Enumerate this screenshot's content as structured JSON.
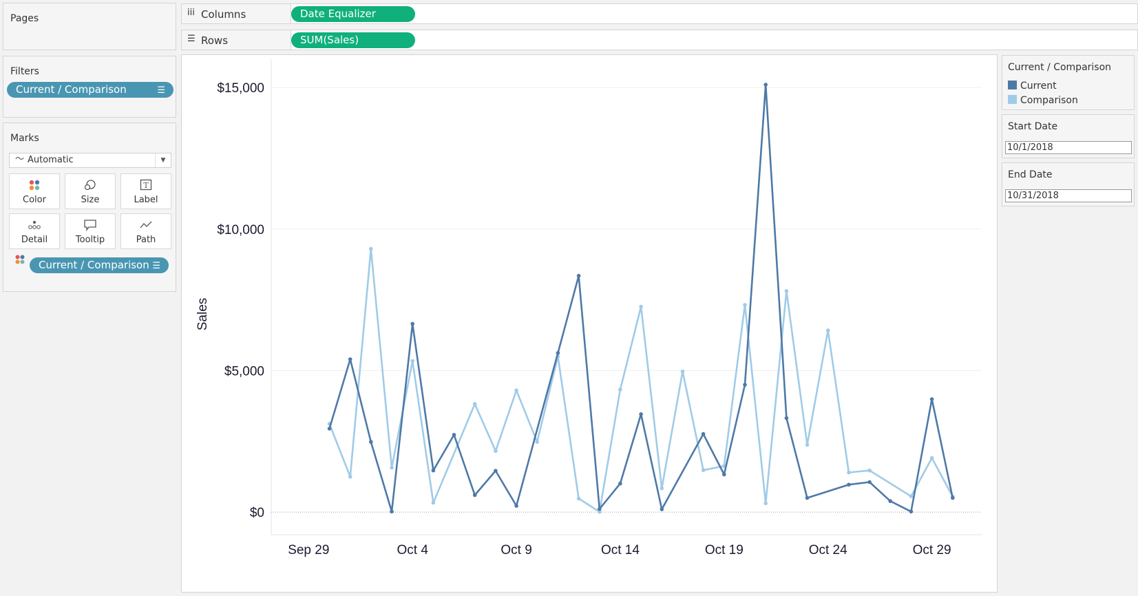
{
  "pages": {
    "title": "Pages"
  },
  "filters": {
    "title": "Filters",
    "pill": "Current / Comparison"
  },
  "marks": {
    "title": "Marks",
    "mark_type": "Automatic",
    "buttons": [
      "Color",
      "Size",
      "Label",
      "Detail",
      "Tooltip",
      "Path"
    ],
    "color_pill": "Current / Comparison"
  },
  "shelves": {
    "columns_label": "Columns",
    "columns_pill": "Date Equalizer",
    "rows_label": "Rows",
    "rows_pill": "SUM(Sales)"
  },
  "legend": {
    "title": "Current / Comparison",
    "items": [
      {
        "label": "Current",
        "color": "#4e79a7"
      },
      {
        "label": "Comparison",
        "color": "#a0cbe8"
      }
    ]
  },
  "start_date": {
    "title": "Start Date",
    "value": "10/1/2018"
  },
  "end_date": {
    "title": "End Date",
    "value": "10/31/2018"
  },
  "chart_data": {
    "type": "line",
    "ylabel": "Sales",
    "xlabel": "",
    "y_ticks": [
      "$0",
      "$5,000",
      "$10,000",
      "$15,000"
    ],
    "y_tick_values": [
      0,
      5000,
      10000,
      15000
    ],
    "ylim": [
      -800,
      16000
    ],
    "x_tick_labels": [
      "Sep 29",
      "Oct 4",
      "Oct 9",
      "Oct 14",
      "Oct 19",
      "Oct 24",
      "Oct 29"
    ],
    "x_tick_days": [
      0,
      5,
      10,
      15,
      20,
      25,
      30
    ],
    "xlim": [
      -1.8,
      32.4
    ],
    "x_days": [
      1,
      2,
      3,
      4,
      5,
      6,
      7,
      8,
      9,
      10,
      11,
      12,
      13,
      14,
      15,
      16,
      17,
      18,
      19,
      20,
      21,
      22,
      23,
      24,
      25,
      26,
      27,
      28,
      29,
      30,
      31
    ],
    "series": [
      {
        "name": "Current",
        "color": "#4e79a7",
        "values": [
          2950,
          5400,
          2480,
          20,
          6650,
          1470,
          2730,
          600,
          1460,
          220,
          null,
          5620,
          8350,
          110,
          1010,
          3460,
          100,
          null,
          2760,
          1330,
          4500,
          15100,
          3320,
          500,
          null,
          970,
          1060,
          390,
          20,
          3990,
          500
        ]
      },
      {
        "name": "Comparison",
        "color": "#a0cbe8",
        "values": [
          3120,
          1250,
          9300,
          1570,
          5340,
          330,
          null,
          3820,
          2160,
          4300,
          2480,
          5500,
          480,
          10,
          4330,
          7260,
          840,
          4970,
          1480,
          1630,
          7320,
          310,
          7810,
          2380,
          6420,
          1400,
          1470,
          null,
          560,
          1910,
          550
        ]
      }
    ],
    "grid": true
  }
}
